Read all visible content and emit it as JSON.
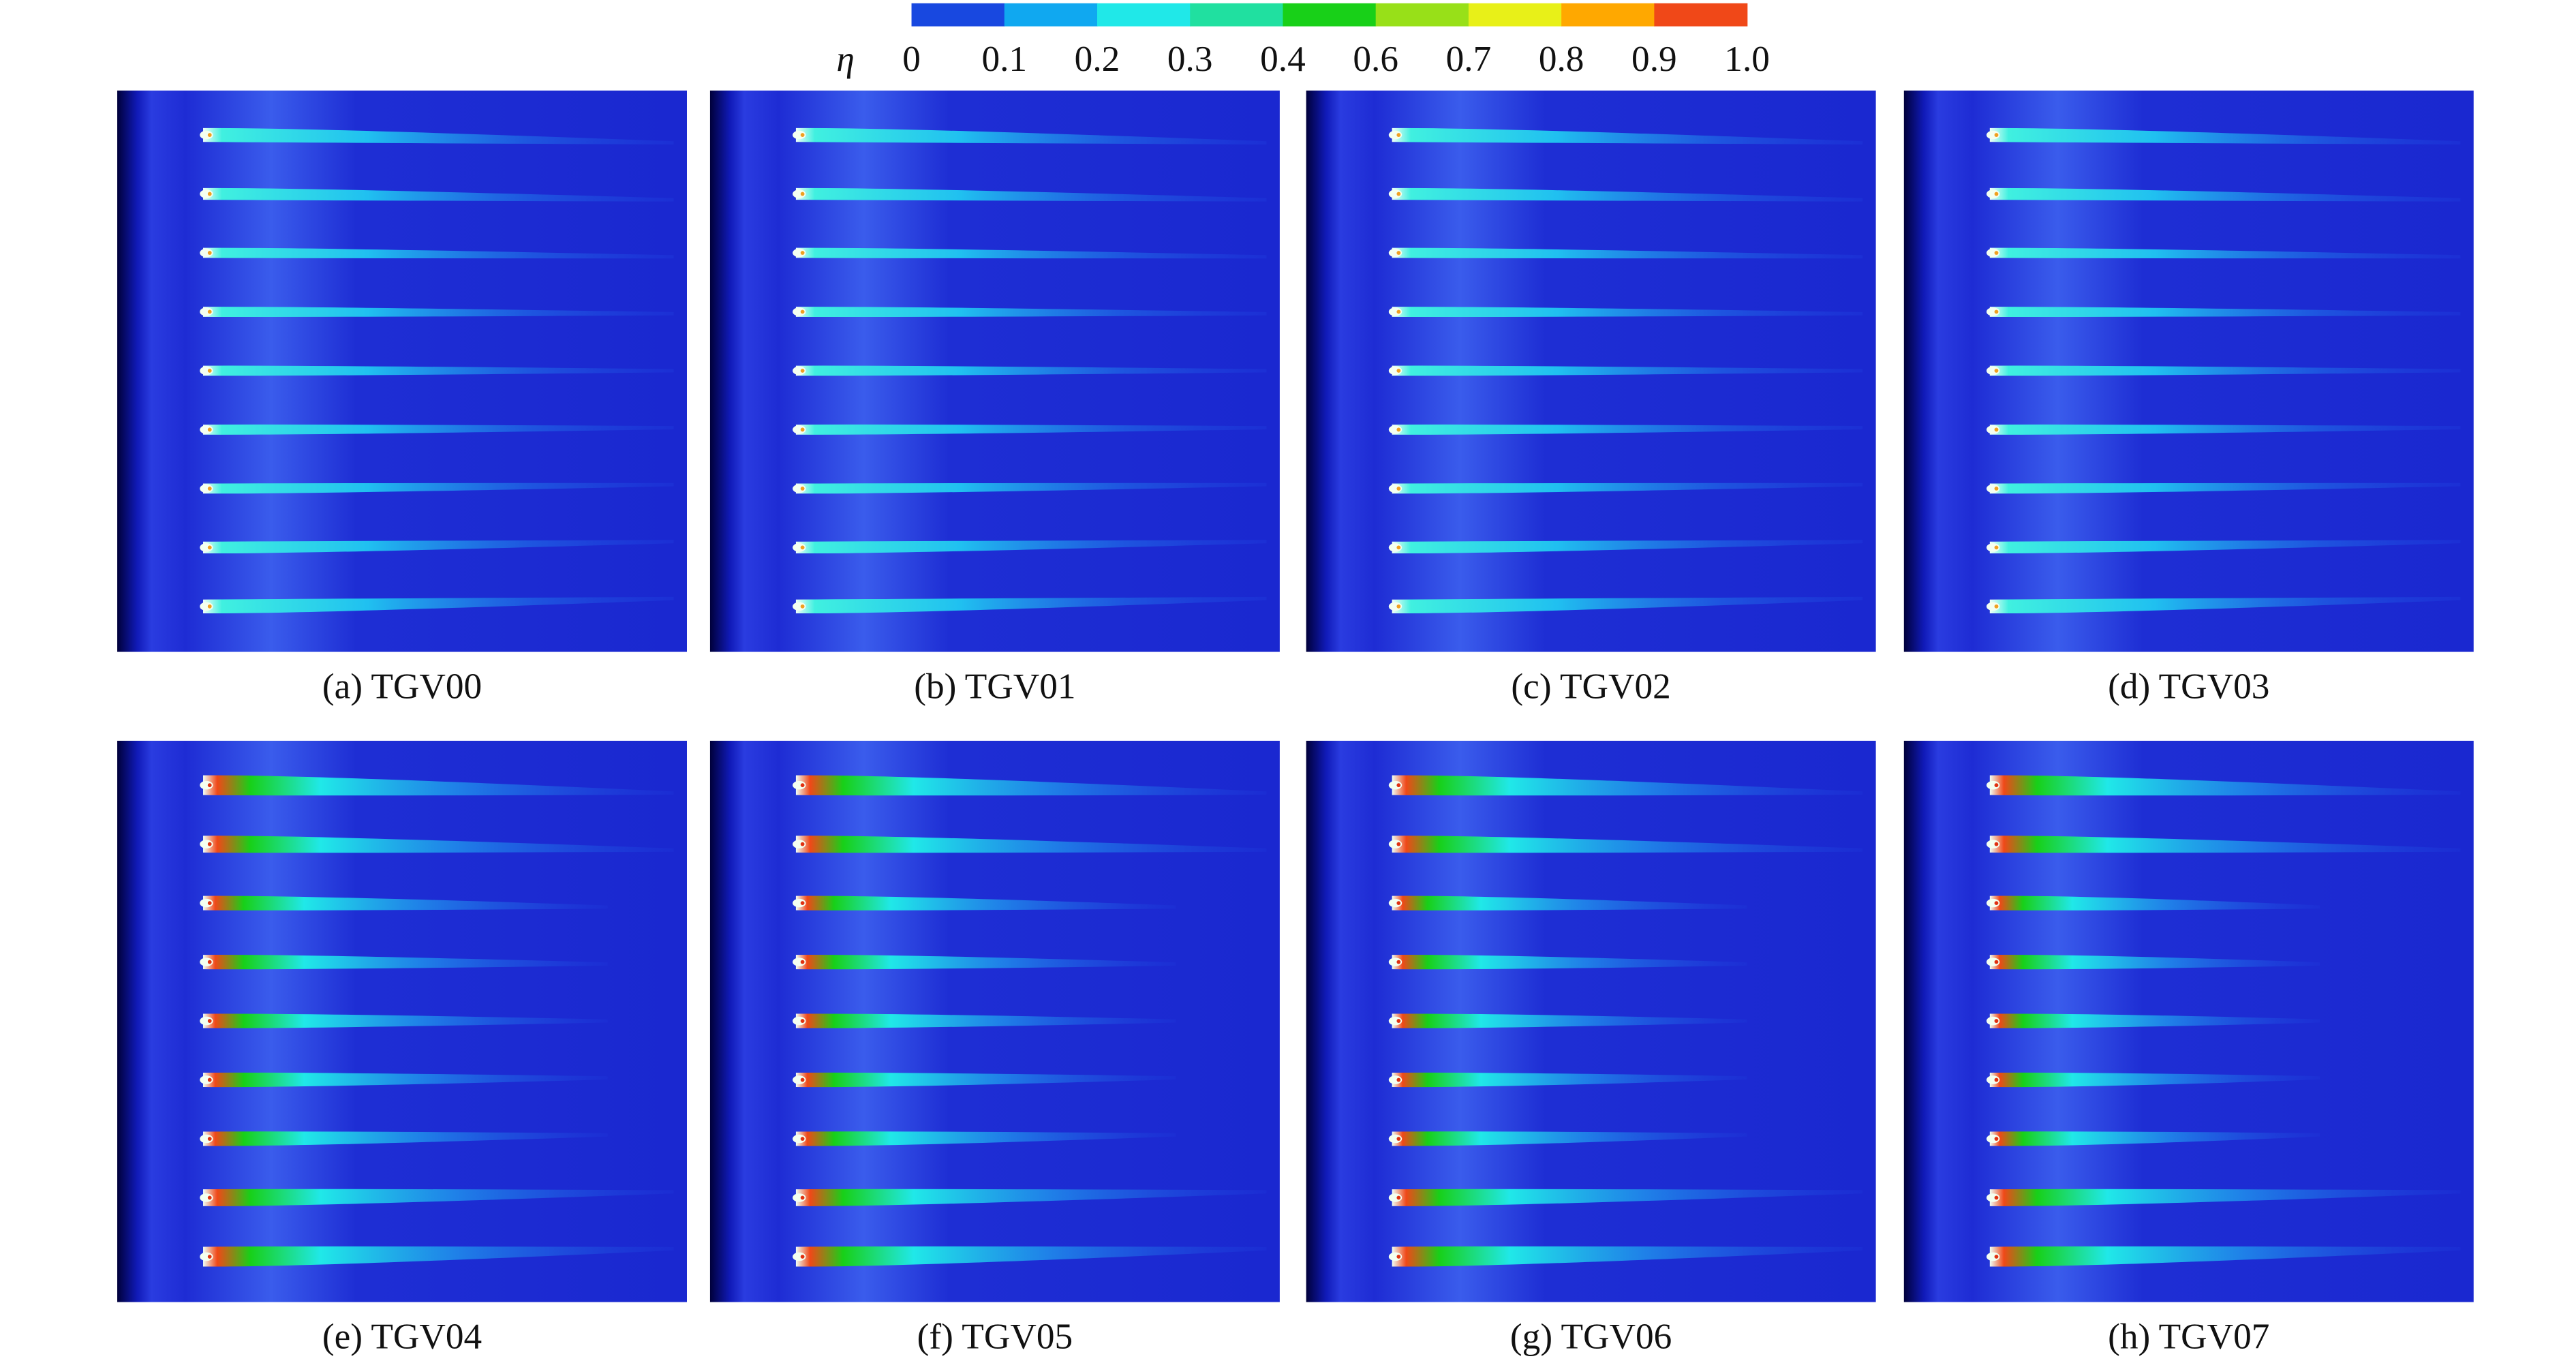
{
  "colorbar": {
    "symbol": "η",
    "labels": [
      "0",
      "0.1",
      "0.2",
      "0.3",
      "0.4",
      "0.6",
      "0.7",
      "0.8",
      "0.9",
      "1.0"
    ],
    "colors": [
      "#1848e0",
      "#10a8f0",
      "#20e8e8",
      "#20e0a0",
      "#18d018",
      "#98e018",
      "#e8f018",
      "#ffa800",
      "#f04818"
    ]
  },
  "panels": [
    {
      "caption": "(a) TGV00"
    },
    {
      "caption": "(b) TGV01"
    },
    {
      "caption": "(c) TGV02"
    },
    {
      "caption": "(d) TGV03"
    },
    {
      "caption": "(e) TGV04"
    },
    {
      "caption": "(f) TGV05"
    },
    {
      "caption": "(g) TGV06"
    },
    {
      "caption": "(h) TGV07"
    }
  ]
}
